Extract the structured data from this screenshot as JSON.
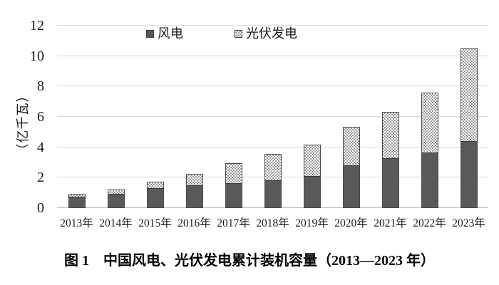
{
  "chart_data": {
    "type": "bar",
    "stacked": true,
    "title": "图 1　中国风电、光伏发电累计装机容量（2013—2023 年）",
    "ylabel": "（亿千瓦）",
    "xlabel": "",
    "categories": [
      "2013年",
      "2014年",
      "2015年",
      "2016年",
      "2017年",
      "2018年",
      "2019年",
      "2020年",
      "2021年",
      "2022年",
      "2023年"
    ],
    "series": [
      {
        "name": "风电",
        "values": [
          0.77,
          0.96,
          1.31,
          1.49,
          1.64,
          1.84,
          2.1,
          2.81,
          3.28,
          3.65,
          4.41
        ],
        "color": "#595959",
        "fill": "solid"
      },
      {
        "name": "光伏发电",
        "values": [
          0.19,
          0.28,
          0.43,
          0.77,
          1.3,
          1.74,
          2.04,
          2.53,
          3.06,
          3.93,
          6.09
        ],
        "color": "#9e9e9e",
        "pattern_bg": "#ffffff",
        "fill": "checkerboard"
      }
    ],
    "ylim": [
      0,
      12
    ],
    "yticks": [
      0,
      2,
      4,
      6,
      8,
      10,
      12
    ],
    "grid": true,
    "legend_position": "top-center",
    "colors": {
      "gridline": "#d9d9d9",
      "axis_line": "#bfbfbf",
      "bar_border": "#4a4a4a",
      "text": "#1a1a1a",
      "background": "#ffffff"
    }
  }
}
